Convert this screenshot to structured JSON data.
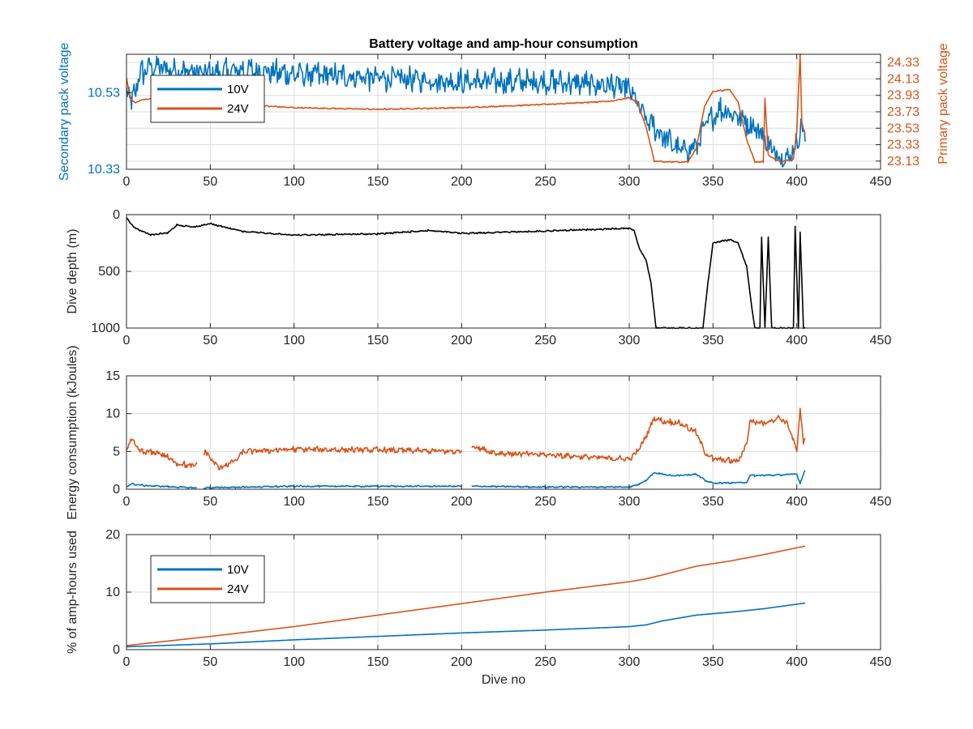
{
  "colors": {
    "c10": "#0072bd",
    "c24": "#d95319",
    "depth": "#000000",
    "axis": "#262626",
    "grid": "#dcdcdc"
  },
  "chart_data": [
    {
      "id": "voltage",
      "type": "line",
      "title": "Battery voltage and amp-hour consumption",
      "xlabel": "",
      "ylabel": "Secondary pack voltage",
      "ylabel_right": "Primary pack voltage",
      "xlim": [
        0,
        450
      ],
      "xticks": [
        0,
        50,
        100,
        150,
        200,
        250,
        300,
        350,
        400,
        450
      ],
      "ylim": [
        10.33,
        10.63
      ],
      "yticks": [
        10.33,
        10.53
      ],
      "ylim_right": [
        23.03,
        24.43
      ],
      "yticks_right": [
        23.13,
        23.33,
        23.53,
        23.73,
        23.93,
        24.13,
        24.33
      ],
      "grid": true,
      "legend": {
        "placement": "top-left",
        "entries": [
          "10V",
          "24V"
        ]
      },
      "series": [
        {
          "name": "10V",
          "axis": "left",
          "color": "#0072bd",
          "noise": 0.025,
          "points": [
            [
              0,
              10.55
            ],
            [
              3,
              10.5
            ],
            [
              8,
              10.58
            ],
            [
              15,
              10.6
            ],
            [
              30,
              10.59
            ],
            [
              50,
              10.58
            ],
            [
              70,
              10.59
            ],
            [
              100,
              10.58
            ],
            [
              150,
              10.57
            ],
            [
              200,
              10.56
            ],
            [
              250,
              10.56
            ],
            [
              290,
              10.55
            ],
            [
              300,
              10.54
            ],
            [
              305,
              10.5
            ],
            [
              310,
              10.46
            ],
            [
              320,
              10.42
            ],
            [
              330,
              10.38
            ],
            [
              340,
              10.39
            ],
            [
              345,
              10.44
            ],
            [
              350,
              10.47
            ],
            [
              355,
              10.49
            ],
            [
              365,
              10.47
            ],
            [
              375,
              10.44
            ],
            [
              380,
              10.42
            ],
            [
              385,
              10.38
            ],
            [
              390,
              10.37
            ],
            [
              395,
              10.36
            ],
            [
              400,
              10.4
            ],
            [
              403,
              10.45
            ],
            [
              405,
              10.4
            ]
          ]
        },
        {
          "name": "24V",
          "axis": "right",
          "color": "#d95319",
          "noise": 0.006,
          "points": [
            [
              0,
              24.15
            ],
            [
              2,
              23.9
            ],
            [
              5,
              23.84
            ],
            [
              10,
              23.88
            ],
            [
              20,
              23.9
            ],
            [
              50,
              23.84
            ],
            [
              100,
              23.78
            ],
            [
              150,
              23.76
            ],
            [
              200,
              23.78
            ],
            [
              250,
              23.82
            ],
            [
              290,
              23.86
            ],
            [
              300,
              23.9
            ],
            [
              305,
              23.84
            ],
            [
              310,
              23.55
            ],
            [
              315,
              23.13
            ],
            [
              320,
              23.12
            ],
            [
              330,
              23.12
            ],
            [
              335,
              23.12
            ],
            [
              340,
              23.28
            ],
            [
              345,
              23.8
            ],
            [
              350,
              23.98
            ],
            [
              360,
              24.0
            ],
            [
              365,
              23.85
            ],
            [
              370,
              23.4
            ],
            [
              375,
              23.12
            ],
            [
              380,
              23.12
            ],
            [
              381,
              23.9
            ],
            [
              383,
              23.2
            ],
            [
              390,
              23.12
            ],
            [
              398,
              23.15
            ],
            [
              400,
              23.5
            ],
            [
              402,
              24.43
            ],
            [
              403,
              23.6
            ],
            [
              405,
              23.45
            ]
          ]
        }
      ]
    },
    {
      "id": "depth",
      "type": "line",
      "title": "",
      "xlabel": "",
      "ylabel": "Dive depth (m)",
      "xlim": [
        0,
        450
      ],
      "xticks": [
        0,
        50,
        100,
        150,
        200,
        250,
        300,
        350,
        400,
        450
      ],
      "ylim": [
        0,
        1000
      ],
      "yticks": [
        0,
        500,
        1000
      ],
      "y_reversed": true,
      "grid": true,
      "series": [
        {
          "name": "",
          "color": "#000000",
          "noise": 5,
          "points": [
            [
              0,
              30
            ],
            [
              5,
              120
            ],
            [
              15,
              180
            ],
            [
              25,
              160
            ],
            [
              30,
              90
            ],
            [
              40,
              110
            ],
            [
              50,
              80
            ],
            [
              70,
              150
            ],
            [
              90,
              170
            ],
            [
              100,
              180
            ],
            [
              150,
              170
            ],
            [
              180,
              140
            ],
            [
              200,
              165
            ],
            [
              250,
              145
            ],
            [
              290,
              125
            ],
            [
              300,
              120
            ],
            [
              303,
              140
            ],
            [
              306,
              300
            ],
            [
              310,
              400
            ],
            [
              313,
              600
            ],
            [
              316,
              1000
            ],
            [
              330,
              1000
            ],
            [
              344,
              1000
            ],
            [
              347,
              600
            ],
            [
              350,
              250
            ],
            [
              360,
              220
            ],
            [
              365,
              250
            ],
            [
              370,
              450
            ],
            [
              373,
              800
            ],
            [
              375,
              1000
            ],
            [
              378,
              1000
            ],
            [
              379,
              200
            ],
            [
              381,
              1000
            ],
            [
              383,
              200
            ],
            [
              385,
              1000
            ],
            [
              398,
              1000
            ],
            [
              399,
              100
            ],
            [
              401,
              1000
            ],
            [
              402,
              150
            ],
            [
              404,
              1000
            ],
            [
              405,
              1000
            ]
          ]
        }
      ]
    },
    {
      "id": "energy",
      "type": "line",
      "title": "",
      "xlabel": "",
      "ylabel": "Energy consumption (kJoules)",
      "xlim": [
        0,
        450
      ],
      "xticks": [
        0,
        50,
        100,
        150,
        200,
        250,
        300,
        350,
        400,
        450
      ],
      "ylim": [
        0,
        15
      ],
      "yticks": [
        0,
        5,
        10,
        15
      ],
      "grid": true,
      "series": [
        {
          "name": "24V",
          "color": "#d95319",
          "noise": 0.3,
          "gaps": [
            [
              42,
              46
            ],
            [
              200,
              206
            ]
          ],
          "points": [
            [
              0,
              5.5
            ],
            [
              3,
              6.5
            ],
            [
              8,
              5.0
            ],
            [
              20,
              4.8
            ],
            [
              30,
              3.5
            ],
            [
              40,
              3.0
            ],
            [
              47,
              5.0
            ],
            [
              55,
              2.8
            ],
            [
              65,
              3.8
            ],
            [
              70,
              5.0
            ],
            [
              100,
              5.3
            ],
            [
              150,
              5.2
            ],
            [
              200,
              5.0
            ],
            [
              206,
              5.8
            ],
            [
              220,
              4.8
            ],
            [
              260,
              4.5
            ],
            [
              280,
              4.2
            ],
            [
              300,
              4.0
            ],
            [
              305,
              5.0
            ],
            [
              310,
              7.0
            ],
            [
              315,
              9.5
            ],
            [
              320,
              9.0
            ],
            [
              330,
              8.8
            ],
            [
              340,
              7.5
            ],
            [
              345,
              5.0
            ],
            [
              350,
              4.0
            ],
            [
              360,
              3.8
            ],
            [
              365,
              3.7
            ],
            [
              370,
              6.0
            ],
            [
              372,
              9.0
            ],
            [
              380,
              8.8
            ],
            [
              390,
              9.5
            ],
            [
              395,
              8.5
            ],
            [
              400,
              5.0
            ],
            [
              402,
              10.5
            ],
            [
              404,
              6.0
            ],
            [
              405,
              7.0
            ]
          ]
        },
        {
          "name": "10V",
          "color": "#0072bd",
          "noise": 0.08,
          "gaps": [
            [
              42,
              46
            ],
            [
              200,
              206
            ]
          ],
          "points": [
            [
              0,
              0.4
            ],
            [
              3,
              0.7
            ],
            [
              10,
              0.5
            ],
            [
              40,
              0.2
            ],
            [
              47,
              0.2
            ],
            [
              100,
              0.4
            ],
            [
              150,
              0.4
            ],
            [
              200,
              0.4
            ],
            [
              206,
              0.4
            ],
            [
              250,
              0.3
            ],
            [
              300,
              0.3
            ],
            [
              305,
              0.6
            ],
            [
              310,
              1.2
            ],
            [
              315,
              2.2
            ],
            [
              325,
              1.8
            ],
            [
              340,
              2.0
            ],
            [
              345,
              1.2
            ],
            [
              350,
              0.8
            ],
            [
              370,
              0.9
            ],
            [
              372,
              1.8
            ],
            [
              390,
              1.9
            ],
            [
              400,
              2.0
            ],
            [
              402,
              0.8
            ],
            [
              405,
              2.6
            ]
          ]
        }
      ]
    },
    {
      "id": "amphours",
      "type": "line",
      "title": "",
      "xlabel": "Dive no",
      "ylabel": "% of amp-hours used",
      "xlim": [
        0,
        450
      ],
      "xticks": [
        0,
        50,
        100,
        150,
        200,
        250,
        300,
        350,
        400,
        450
      ],
      "ylim": [
        0,
        20
      ],
      "yticks": [
        0,
        10,
        20
      ],
      "grid": true,
      "legend": {
        "placement": "top-left",
        "entries": [
          "10V",
          "24V"
        ]
      },
      "series": [
        {
          "name": "10V",
          "color": "#0072bd",
          "noise": 0,
          "points": [
            [
              0,
              0.5
            ],
            [
              50,
              1.0
            ],
            [
              100,
              1.7
            ],
            [
              150,
              2.3
            ],
            [
              200,
              2.9
            ],
            [
              250,
              3.4
            ],
            [
              300,
              4.0
            ],
            [
              310,
              4.3
            ],
            [
              320,
              5.0
            ],
            [
              340,
              6.0
            ],
            [
              360,
              6.5
            ],
            [
              380,
              7.1
            ],
            [
              400,
              7.9
            ],
            [
              405,
              8.1
            ]
          ]
        },
        {
          "name": "24V",
          "color": "#d95319",
          "noise": 0,
          "points": [
            [
              0,
              0.7
            ],
            [
              50,
              2.3
            ],
            [
              100,
              4.0
            ],
            [
              150,
              6.0
            ],
            [
              200,
              8.0
            ],
            [
              250,
              10.0
            ],
            [
              300,
              11.8
            ],
            [
              310,
              12.3
            ],
            [
              320,
              13.0
            ],
            [
              340,
              14.5
            ],
            [
              360,
              15.4
            ],
            [
              380,
              16.5
            ],
            [
              400,
              17.7
            ],
            [
              405,
              18.0
            ]
          ]
        }
      ]
    }
  ]
}
